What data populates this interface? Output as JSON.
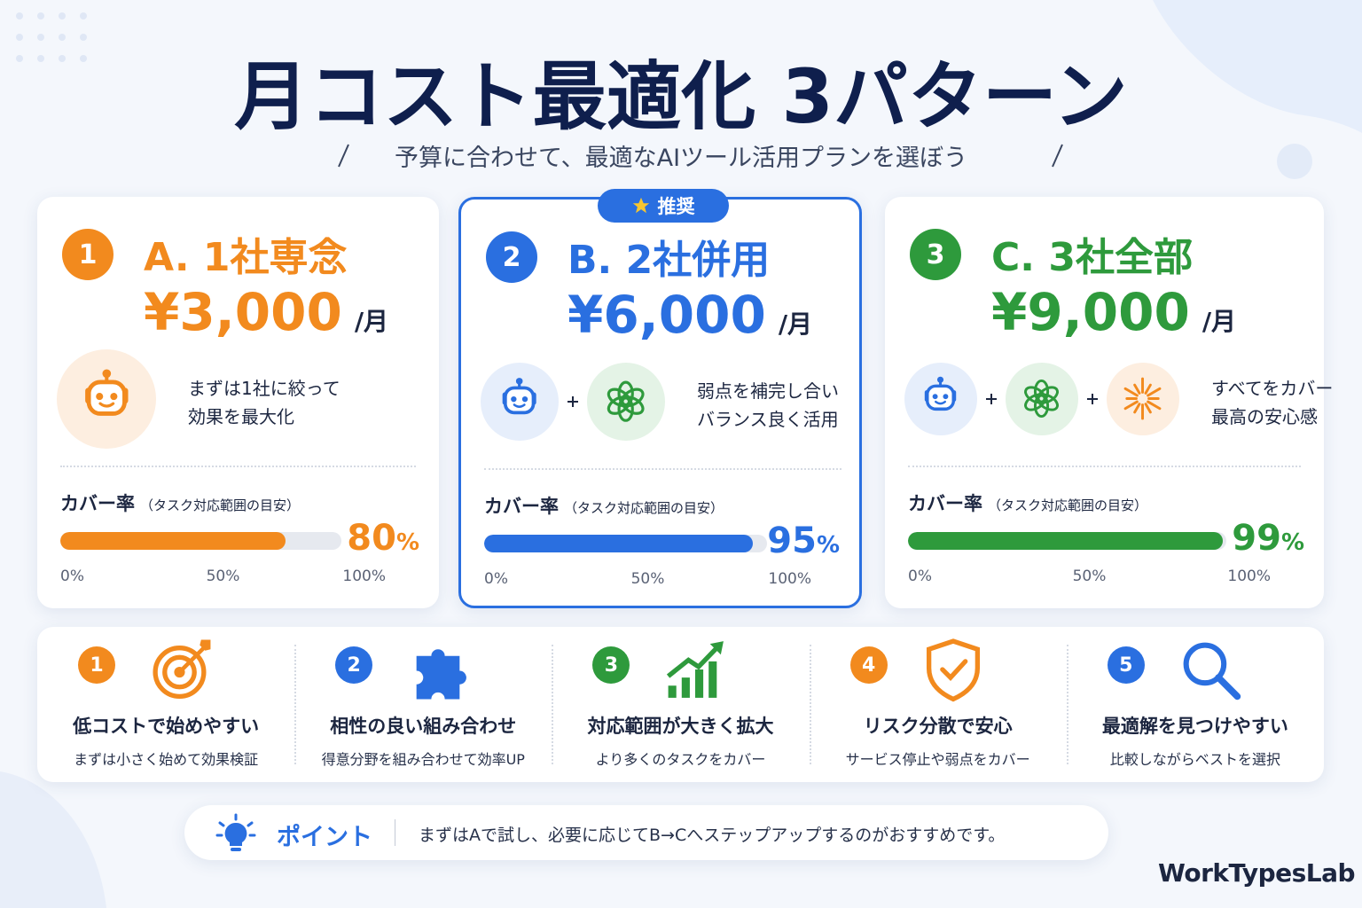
{
  "header": {
    "title": "月コスト最適化 3パターン",
    "subtitle": "予算に合わせて、最適なAIツール活用プランを選ぼう"
  },
  "plans": [
    {
      "number": 1,
      "name": "A. 1社専念",
      "price": "¥3,000",
      "per": "/月",
      "description": [
        "まずは1社に絞って",
        "効果を最大化"
      ],
      "coverage_label": "カバー率",
      "coverage_note": "（タスク対応範囲の目安）",
      "coverage": 80,
      "coverage_unit": "%",
      "ticks": [
        {
          "value": 0,
          "label": "0%"
        },
        {
          "value": 50,
          "label": "50%"
        },
        {
          "value": 100,
          "label": "100%"
        }
      ],
      "color": "#f28a1e"
    },
    {
      "number": 2,
      "name": "B. 2社併用",
      "price": "¥6,000",
      "per": "/月",
      "badge": "推奨",
      "description": [
        "弱点を補完し合い",
        "バランス良く活用"
      ],
      "coverage_label": "カバー率",
      "coverage_note": "（タスク対応範囲の目安）",
      "coverage": 95,
      "coverage_unit": "%",
      "ticks": [
        {
          "value": 0,
          "label": "0%"
        },
        {
          "value": 50,
          "label": "50%"
        },
        {
          "value": 100,
          "label": "100%"
        }
      ],
      "color": "#2a6fe0"
    },
    {
      "number": 3,
      "name": "C. 3社全部",
      "price": "¥9,000",
      "per": "/月",
      "description": [
        "すべてをカバー",
        "最高の安心感"
      ],
      "coverage_label": "カバー率",
      "coverage_note": "（タスク対応範囲の目安）",
      "coverage": 99,
      "coverage_unit": "%",
      "ticks": [
        {
          "value": 0,
          "label": "0%"
        },
        {
          "value": 50,
          "label": "50%"
        },
        {
          "value": 100,
          "label": "100%"
        }
      ],
      "color": "#2e9a3c"
    }
  ],
  "benefits": [
    {
      "number": 1,
      "title": "低コストで始めやすい",
      "text": "まずは小さく始めて効果検証",
      "color": "#f28a1e"
    },
    {
      "number": 2,
      "title": "相性の良い組み合わせ",
      "text": "得意分野を組み合わせて効率UP",
      "color": "#2a6fe0"
    },
    {
      "number": 3,
      "title": "対応範囲が大きく拡大",
      "text": "より多くのタスクをカバー",
      "color": "#2e9a3c"
    },
    {
      "number": 4,
      "title": "リスク分散で安心",
      "text": "サービス停止や弱点をカバー",
      "color": "#f28a1e"
    },
    {
      "number": 5,
      "title": "最適解を見つけやすい",
      "text": "比較しながらベストを選択",
      "color": "#2a6fe0"
    }
  ],
  "point": {
    "label": "ポイント",
    "text": "まずはAで試し、必要に応じてB→Cへステップアップするのがおすすめです。"
  },
  "brand": "WorkTypesLab"
}
